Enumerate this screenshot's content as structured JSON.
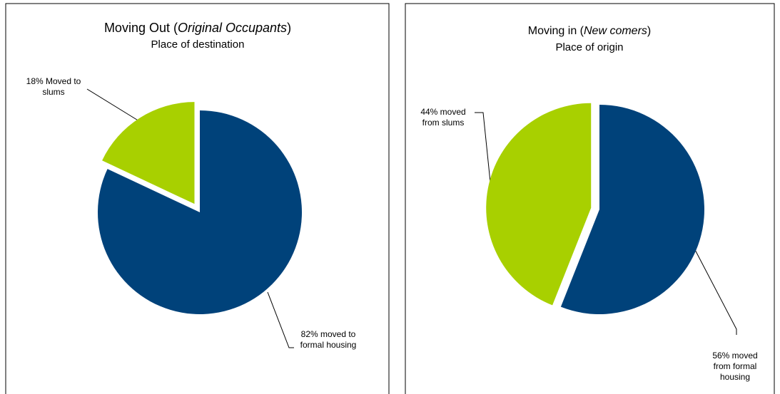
{
  "chart_data": [
    {
      "type": "pie",
      "title_parts": [
        "Moving Out (",
        "Original Occupants",
        ")"
      ],
      "subtitle": "Place of destination",
      "values": [
        82,
        18
      ],
      "value_labels": [
        "82% moved to formal housing",
        "18% Moved to slums"
      ],
      "colors": [
        "#00427a",
        "#a8d000"
      ]
    },
    {
      "type": "pie",
      "title_parts": [
        "Moving in (",
        "New comers",
        ")"
      ],
      "subtitle": "Place of origin",
      "values": [
        56,
        44
      ],
      "value_labels": [
        "56% moved from formal housing",
        "44% moved from slums"
      ],
      "colors": [
        "#00427a",
        "#a8d000"
      ]
    }
  ]
}
